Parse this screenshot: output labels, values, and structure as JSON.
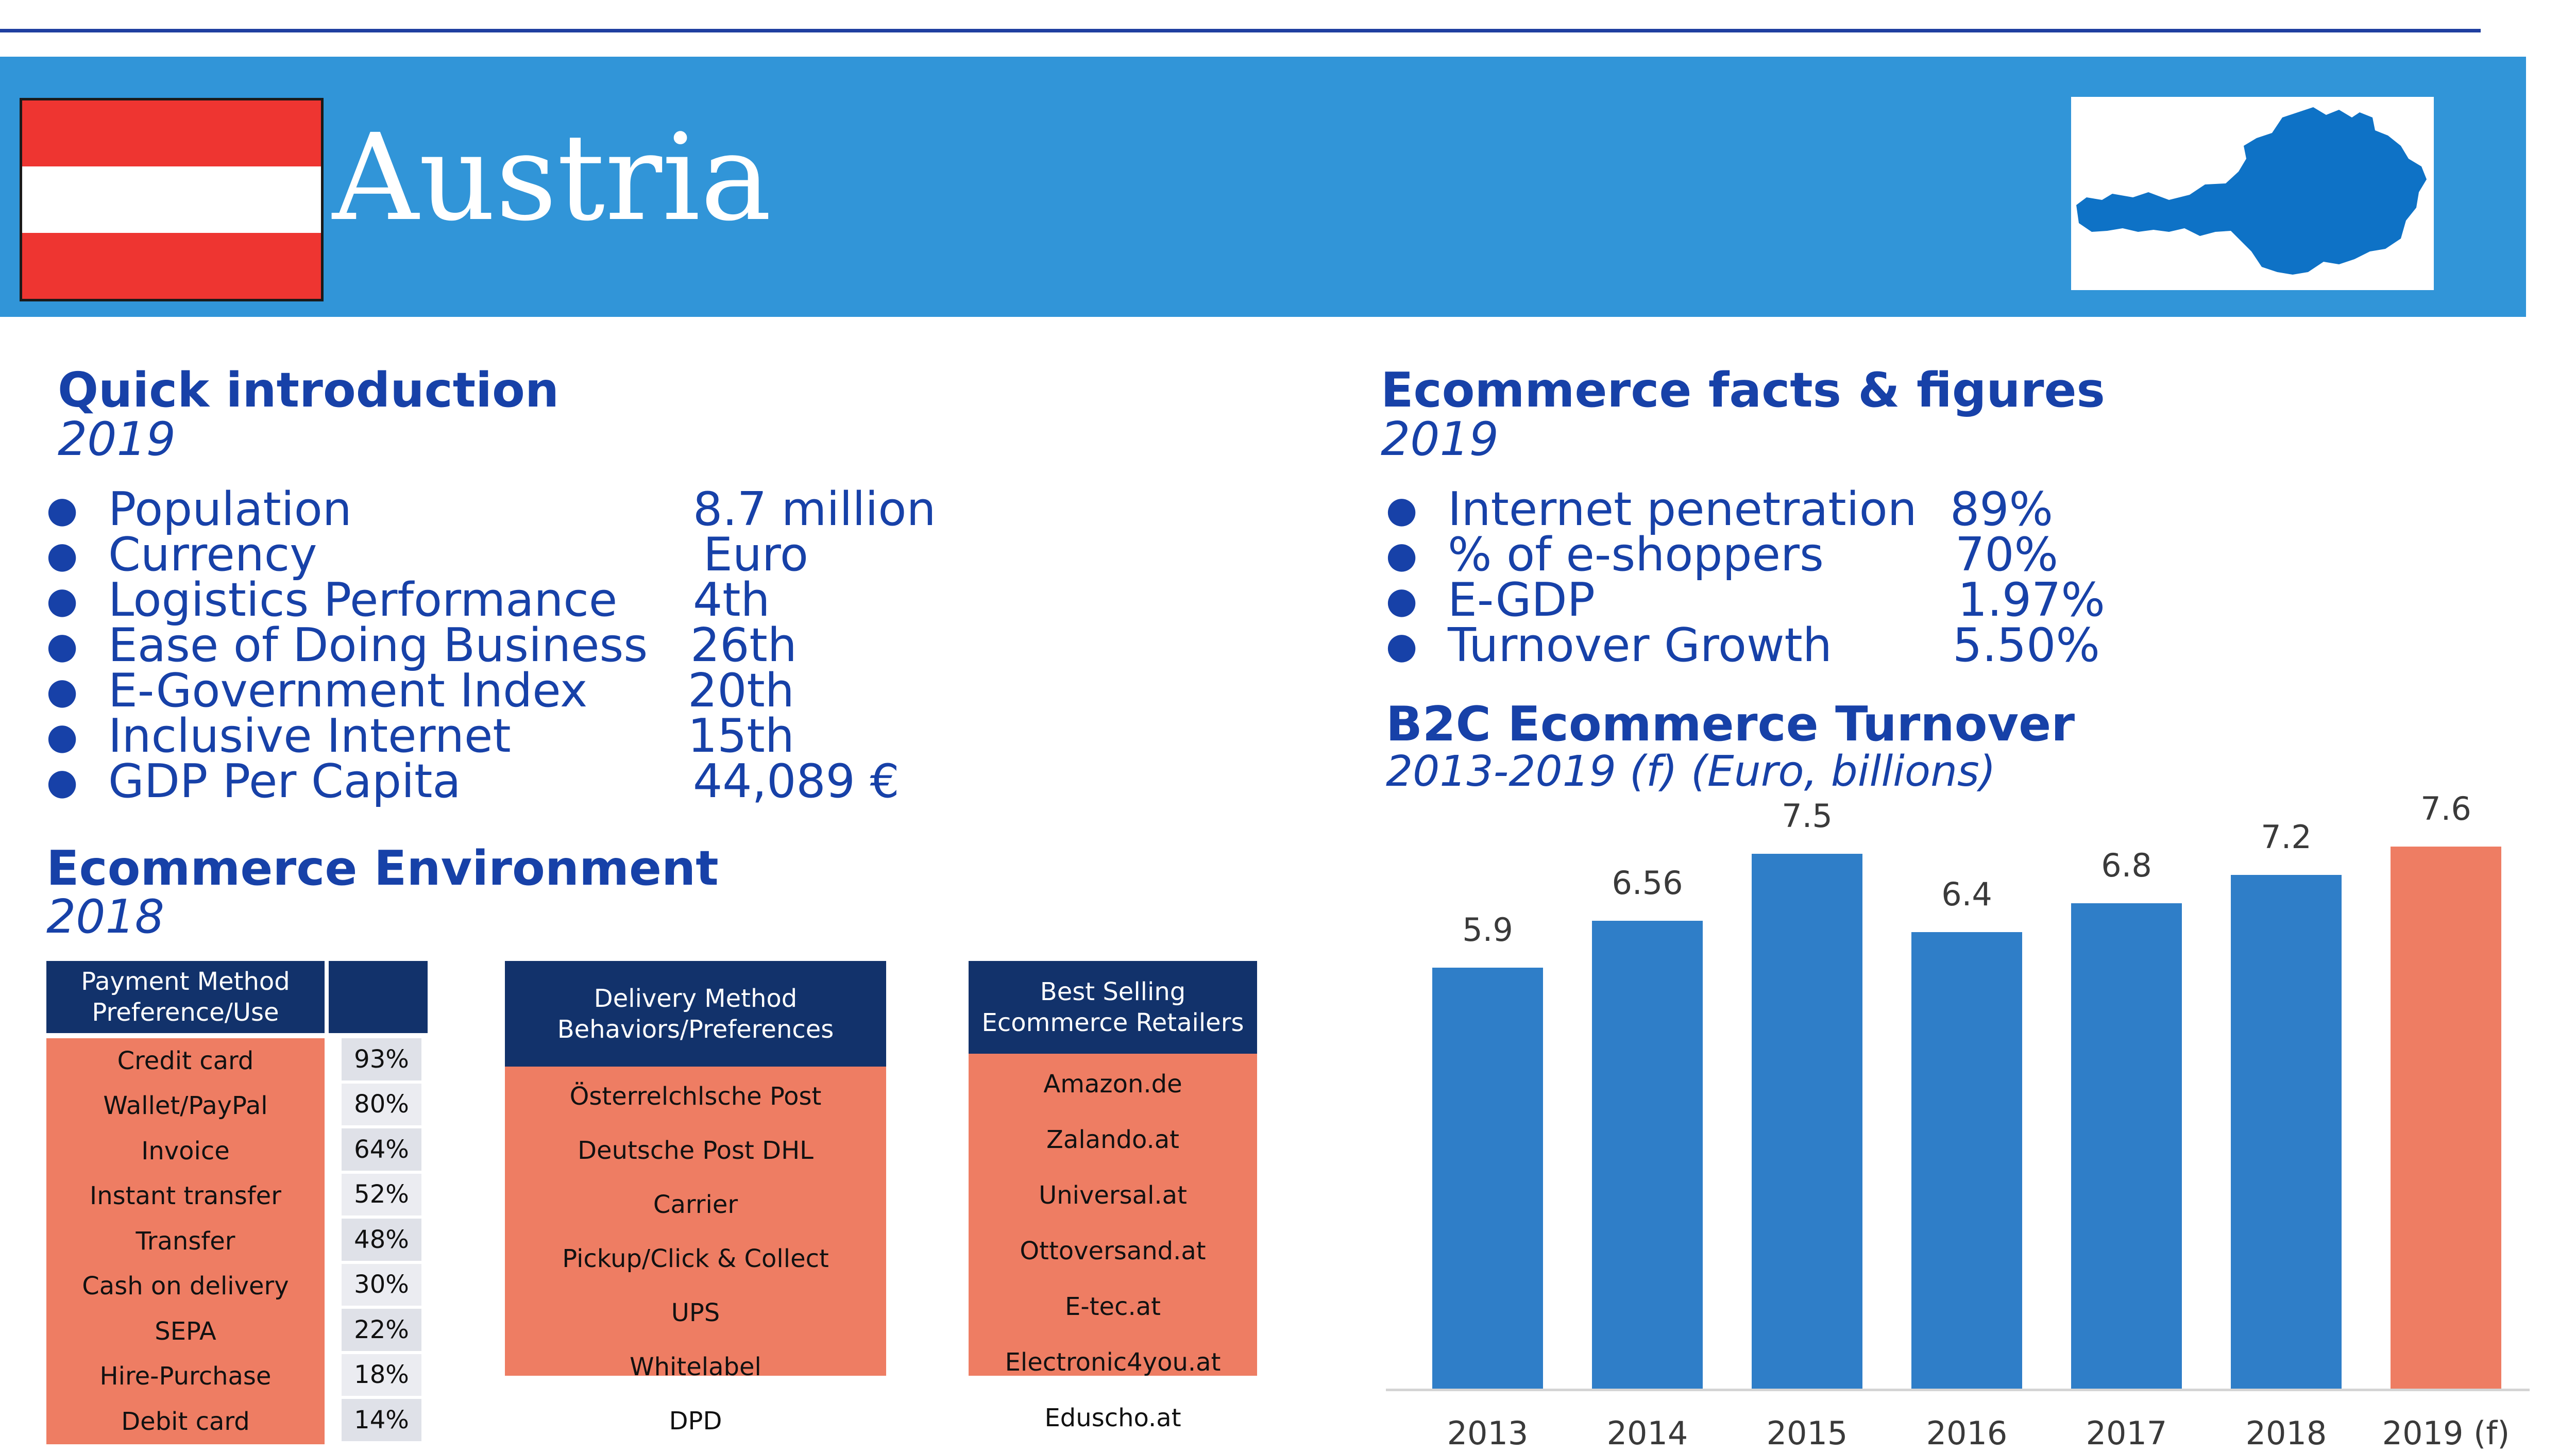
{
  "header": {
    "country": "Austria",
    "flag_colors": [
      "#ee3531",
      "#ffffff",
      "#ee3531"
    ],
    "map_icon": "austria-map-icon"
  },
  "intro": {
    "title": "Quick introduction",
    "year": "2019",
    "items": [
      {
        "label": "Population",
        "value": "8.7 million"
      },
      {
        "label": "Currency",
        "value": "Euro"
      },
      {
        "label": "Logistics Performance",
        "value": "4th"
      },
      {
        "label": "Ease of Doing Business",
        "value": "26th"
      },
      {
        "label": "E-Government Index",
        "value": "20th"
      },
      {
        "label": "Inclusive Internet",
        "value": "15th"
      },
      {
        "label": "GDP Per Capita",
        "value": "44,089 €"
      }
    ]
  },
  "facts": {
    "title": "Ecommerce facts & figures",
    "year": "2019",
    "items": [
      {
        "label": "Internet penetration",
        "value": "89%"
      },
      {
        "label": "% of e-shoppers",
        "value": "70%"
      },
      {
        "label": "E-GDP",
        "value": "1.97%"
      },
      {
        "label": "Turnover Growth",
        "value": "5.50%"
      }
    ]
  },
  "environment": {
    "title": "Ecommerce Environment",
    "year": "2018",
    "payment": {
      "header": "Payment Method Preference/Use",
      "rows": [
        {
          "label": "Credit card",
          "value": "93%"
        },
        {
          "label": "Wallet/PayPal",
          "value": "80%"
        },
        {
          "label": "Invoice",
          "value": "64%"
        },
        {
          "label": "Instant transfer",
          "value": "52%"
        },
        {
          "label": "Transfer",
          "value": "48%"
        },
        {
          "label": "Cash on delivery",
          "value": "30%"
        },
        {
          "label": "SEPA",
          "value": "22%"
        },
        {
          "label": "Hire-Purchase",
          "value": "18%"
        },
        {
          "label": "Debit card",
          "value": "14%"
        }
      ]
    },
    "delivery": {
      "header": "Delivery Method Behaviors/Preferences",
      "rows": [
        "Österrelchlsche Post",
        "Deutsche Post DHL",
        "Carrier",
        "Pickup/Click & Collect",
        "UPS",
        "Whitelabel",
        "DPD"
      ]
    },
    "retailers": {
      "header": "Best Selling Ecommerce Retailers",
      "rows": [
        "Amazon.de",
        "Zalando.at",
        "Universal.at",
        "Ottoversand.at",
        "E-tec.at",
        "Electronic4you.at",
        "Eduscho.at"
      ]
    }
  },
  "chart_data": {
    "type": "bar",
    "title": "B2C Ecommerce Turnover",
    "subtitle": "2013-2019 (f) (Euro, billions)",
    "categories": [
      "2013",
      "2014",
      "2015",
      "2016",
      "2017",
      "2018",
      "2019 (f)"
    ],
    "values": [
      5.9,
      6.56,
      7.5,
      6.4,
      6.8,
      7.2,
      7.6
    ],
    "value_labels": [
      "5.9",
      "6.56",
      "7.5",
      "6.4",
      "6.8",
      "7.2",
      "7.6"
    ],
    "colors": [
      "#2f7ec8",
      "#2f7ec8",
      "#2f7ec8",
      "#2f7ec8",
      "#2f7ec8",
      "#2f7ec8",
      "#ee7d63"
    ],
    "ylim": [
      0,
      7.8
    ],
    "grid": false
  }
}
